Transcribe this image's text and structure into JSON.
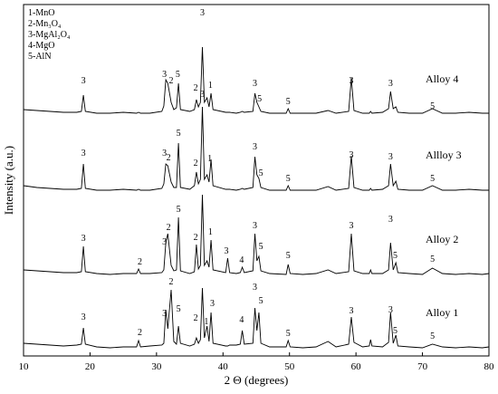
{
  "chart_data": {
    "type": "line",
    "x_label": "2 Θ (degrees)",
    "y_label": "Intensity (a.u.)",
    "xlim": [
      10,
      80
    ],
    "xticks": [
      10,
      20,
      30,
      40,
      50,
      60,
      70,
      80
    ],
    "ylim": [
      0,
      388
    ],
    "legend": [
      "1-MnO",
      "2-Mn₃O₄",
      "3-MgAl₂O₄",
      "4-MgO",
      "5-AlN"
    ],
    "x": [
      10,
      12,
      14,
      16,
      18,
      18.7,
      19,
      19.3,
      21,
      23,
      25,
      27,
      27.3,
      27.6,
      29,
      30.8,
      31.1,
      31.4,
      31.7,
      32.2,
      32.6,
      33.0,
      33.3,
      33.6,
      35,
      35.7,
      36.0,
      36.3,
      36.6,
      36.9,
      37.2,
      37.6,
      37.9,
      38.2,
      38.5,
      40.4,
      40.7,
      41.0,
      42,
      42.6,
      42.9,
      43.2,
      44.5,
      44.8,
      45.1,
      45.4,
      45.7,
      47,
      49.5,
      49.8,
      50.1,
      52,
      54,
      55.8,
      57,
      58.9,
      59.3,
      59.7,
      61,
      62,
      62.2,
      62.4,
      64,
      64.9,
      65.2,
      65.6,
      66.0,
      66.3,
      68,
      70,
      71.5,
      73,
      75,
      77,
      79,
      80
    ],
    "series": [
      {
        "name": "Alloy 1",
        "color": "#000000",
        "values": [
          14,
          13,
          12,
          11,
          12,
          13,
          31,
          13,
          10,
          9,
          10,
          10,
          17,
          10,
          11,
          12,
          14,
          51,
          30,
          73,
          16,
          13,
          33,
          14,
          11,
          13,
          20,
          14,
          18,
          75,
          20,
          33,
          16,
          48,
          14,
          11,
          11,
          12,
          12,
          13,
          28,
          13,
          14,
          53,
          28,
          48,
          14,
          10,
          10,
          17,
          10,
          9,
          10,
          16,
          10,
          13,
          43,
          15,
          10,
          11,
          18,
          11,
          10,
          15,
          48,
          14,
          23,
          11,
          10,
          9,
          13,
          10,
          9,
          10,
          9,
          10
        ]
      },
      {
        "name": "Alloy 2",
        "color": "#000000",
        "values": [
          95,
          94,
          93,
          92,
          92,
          93,
          121,
          93,
          91,
          90,
          91,
          91,
          96,
          91,
          91,
          92,
          95,
          125,
          135,
          100,
          94,
          95,
          153,
          94,
          91,
          93,
          123,
          96,
          100,
          178,
          100,
          105,
          98,
          128,
          95,
          92,
          108,
          92,
          91,
          92,
          98,
          92,
          94,
          135,
          105,
          110,
          94,
          91,
          90,
          101,
          91,
          90,
          91,
          95,
          91,
          93,
          135,
          94,
          91,
          91,
          95,
          91,
          91,
          95,
          125,
          95,
          103,
          92,
          91,
          90,
          97,
          91,
          90,
          91,
          90,
          91
        ]
      },
      {
        "name": "Allloy 3",
        "color": "#000000",
        "values": [
          188,
          186,
          185,
          184,
          184,
          185,
          212,
          185,
          183,
          183,
          184,
          183,
          184,
          183,
          183,
          185,
          190,
          212,
          210,
          192,
          186,
          186,
          235,
          186,
          184,
          188,
          203,
          190,
          195,
          275,
          195,
          200,
          192,
          217,
          188,
          184,
          184,
          184,
          183,
          184,
          185,
          184,
          186,
          220,
          200,
          196,
          186,
          183,
          183,
          188,
          183,
          183,
          183,
          187,
          183,
          185,
          221,
          186,
          183,
          183,
          185,
          183,
          184,
          188,
          212,
          188,
          193,
          184,
          183,
          183,
          188,
          183,
          183,
          184,
          183,
          183
        ]
      },
      {
        "name": "Alloy 4",
        "color": "#000000",
        "values": [
          272,
          271,
          270,
          269,
          269,
          270,
          288,
          270,
          268,
          268,
          269,
          268,
          269,
          268,
          268,
          270,
          276,
          305,
          301,
          280,
          272,
          274,
          301,
          272,
          270,
          272,
          283,
          275,
          280,
          341,
          280,
          285,
          275,
          290,
          272,
          269,
          269,
          269,
          268,
          269,
          270,
          269,
          270,
          290,
          280,
          275,
          270,
          268,
          268,
          273,
          268,
          268,
          268,
          271,
          268,
          270,
          307,
          271,
          268,
          268,
          270,
          268,
          269,
          273,
          292,
          273,
          275,
          269,
          268,
          268,
          273,
          268,
          268,
          269,
          268,
          268
        ]
      }
    ],
    "annotations": [
      {
        "label": "3",
        "x": 19,
        "y": 40
      },
      {
        "label": "2",
        "x": 27.5,
        "y": 23
      },
      {
        "label": "3",
        "x": 31.2,
        "y": 44
      },
      {
        "label": "2",
        "x": 32.2,
        "y": 79
      },
      {
        "label": "5",
        "x": 33.3,
        "y": 49
      },
      {
        "label": "2",
        "x": 35.9,
        "y": 39
      },
      {
        "label": "1",
        "x": 37.5,
        "y": 35
      },
      {
        "label": "3",
        "x": 38.4,
        "y": 55
      },
      {
        "label": "4",
        "x": 42.8,
        "y": 37
      },
      {
        "label": "3",
        "x": 44.8,
        "y": 73
      },
      {
        "label": "5",
        "x": 45.7,
        "y": 58
      },
      {
        "label": "5",
        "x": 49.8,
        "y": 22
      },
      {
        "label": "3",
        "x": 59.3,
        "y": 47
      },
      {
        "label": "3",
        "x": 65.2,
        "y": 48
      },
      {
        "label": "5",
        "x": 65.9,
        "y": 25
      },
      {
        "label": "5",
        "x": 71.5,
        "y": 19
      },
      {
        "label": "3",
        "x": 19,
        "y": 127
      },
      {
        "label": "2",
        "x": 27.5,
        "y": 101
      },
      {
        "label": "3",
        "x": 31.2,
        "y": 123
      },
      {
        "label": "2",
        "x": 31.8,
        "y": 139
      },
      {
        "label": "5",
        "x": 33.3,
        "y": 159
      },
      {
        "label": "2",
        "x": 35.9,
        "y": 128
      },
      {
        "label": "1",
        "x": 38.1,
        "y": 134
      },
      {
        "label": "3",
        "x": 40.5,
        "y": 113
      },
      {
        "label": "4",
        "x": 42.8,
        "y": 103
      },
      {
        "label": "3",
        "x": 44.8,
        "y": 141
      },
      {
        "label": "5",
        "x": 45.7,
        "y": 118
      },
      {
        "label": "5",
        "x": 49.8,
        "y": 108
      },
      {
        "label": "3",
        "x": 59.3,
        "y": 141
      },
      {
        "label": "3",
        "x": 65.2,
        "y": 148
      },
      {
        "label": "5",
        "x": 65.9,
        "y": 108
      },
      {
        "label": "5",
        "x": 71.5,
        "y": 104
      },
      {
        "label": "3",
        "x": 19,
        "y": 221
      },
      {
        "label": "3",
        "x": 31.2,
        "y": 221
      },
      {
        "label": "2",
        "x": 31.8,
        "y": 216
      },
      {
        "label": "5",
        "x": 33.3,
        "y": 243
      },
      {
        "label": "2",
        "x": 35.9,
        "y": 210
      },
      {
        "label": "3",
        "x": 36.9,
        "y": 286
      },
      {
        "label": "1",
        "x": 38,
        "y": 215
      },
      {
        "label": "3",
        "x": 44.8,
        "y": 228
      },
      {
        "label": "5",
        "x": 45.7,
        "y": 199
      },
      {
        "label": "5",
        "x": 49.8,
        "y": 193
      },
      {
        "label": "3",
        "x": 59.3,
        "y": 219
      },
      {
        "label": "3",
        "x": 65.2,
        "y": 217
      },
      {
        "label": "5",
        "x": 71.5,
        "y": 193
      },
      {
        "label": "3",
        "x": 19,
        "y": 301
      },
      {
        "label": "3",
        "x": 31.2,
        "y": 308
      },
      {
        "label": "2",
        "x": 32.2,
        "y": 301
      },
      {
        "label": "5",
        "x": 33.2,
        "y": 308
      },
      {
        "label": "2",
        "x": 35.9,
        "y": 293
      },
      {
        "label": "3",
        "x": 36.9,
        "y": 376
      },
      {
        "label": "1",
        "x": 38.1,
        "y": 296
      },
      {
        "label": "3",
        "x": 44.8,
        "y": 298
      },
      {
        "label": "5",
        "x": 45.5,
        "y": 281
      },
      {
        "label": "5",
        "x": 49.8,
        "y": 278
      },
      {
        "label": "3",
        "x": 59.3,
        "y": 301
      },
      {
        "label": "3",
        "x": 65.2,
        "y": 298
      },
      {
        "label": "5",
        "x": 71.5,
        "y": 273
      }
    ]
  }
}
